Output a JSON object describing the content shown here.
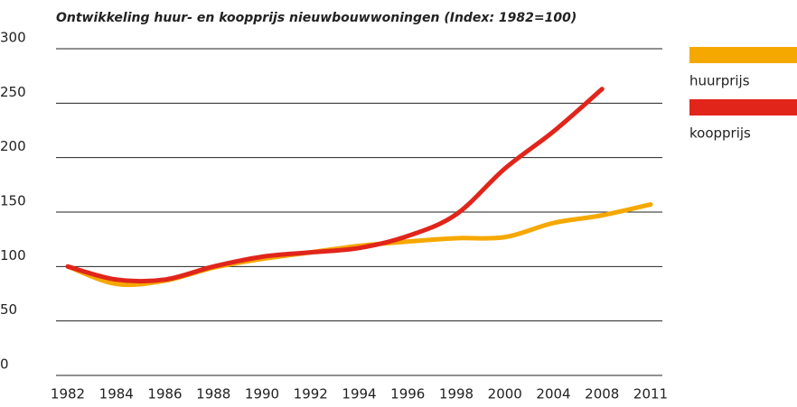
{
  "chart_data": {
    "type": "line",
    "title": "Ontwikkeling huur- en koopprijs nieuwbouwwoningen (Index: 1982=100)",
    "categories": [
      "1982",
      "1984",
      "1986",
      "1988",
      "1990",
      "1992",
      "1994",
      "1996",
      "1998",
      "2000",
      "2004",
      "2008",
      "2011"
    ],
    "series": [
      {
        "name": "huurprijs",
        "color": "#f5a800",
        "values": [
          100,
          84,
          87,
          99,
          107,
          113,
          119,
          123,
          126,
          127,
          140,
          147,
          157
        ]
      },
      {
        "name": "koopprijs",
        "color": "#e1251b",
        "values": [
          100,
          88,
          88,
          100,
          109,
          113,
          117,
          128,
          148,
          190,
          224,
          263,
          null
        ]
      }
    ],
    "ylim": [
      0,
      300
    ],
    "yticks": [
      0,
      50,
      100,
      150,
      200,
      250,
      300
    ],
    "grid": true,
    "legend": "right"
  }
}
